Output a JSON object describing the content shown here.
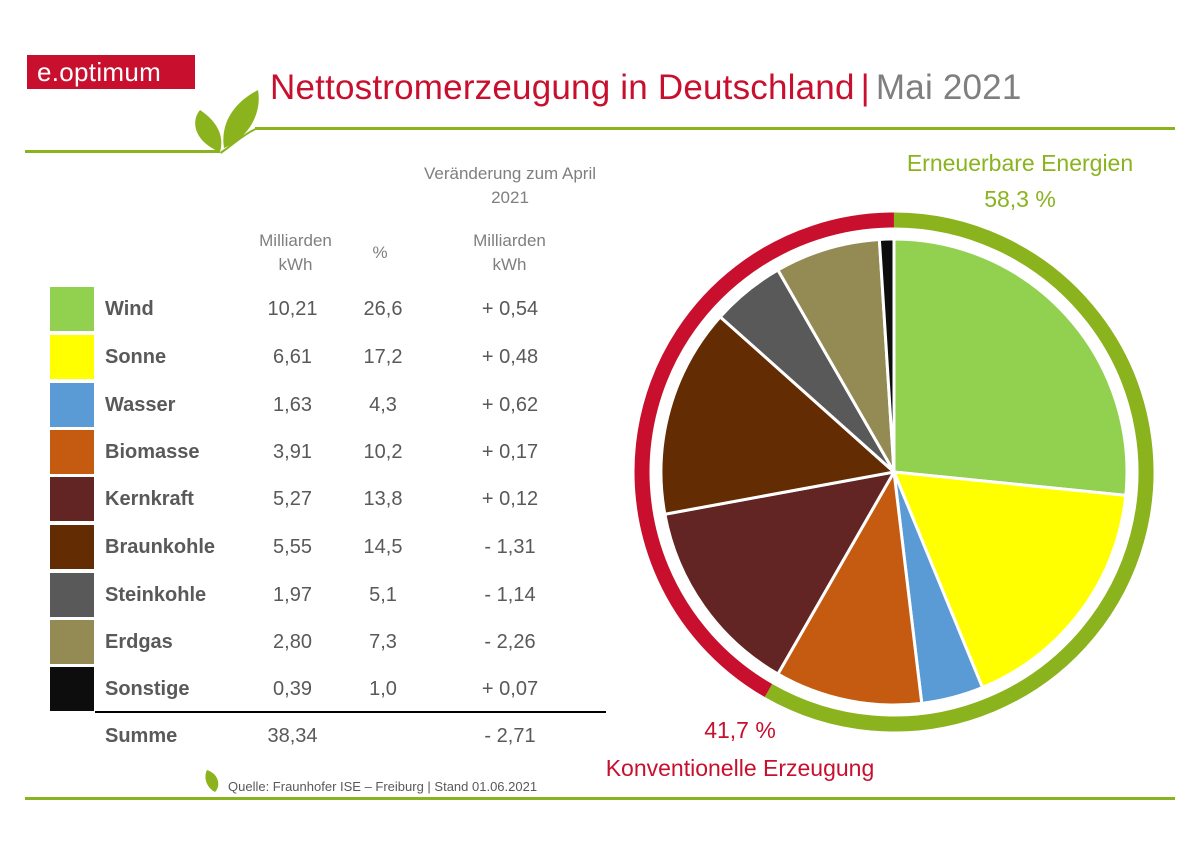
{
  "logo": {
    "text": "e.optimum"
  },
  "title": {
    "main": "Nettostromerzeugung in Deutschland",
    "separator": "|",
    "period": "Mai 2021"
  },
  "table": {
    "change_header": "Veränderung zum April 2021",
    "col_value_header": "Milliarden kWh",
    "col_pct_header": "%",
    "col_change_header": "Milliarden kWh",
    "rows": [
      {
        "name": "Wind",
        "value": "10,21",
        "pct": "26,6",
        "change": "+ 0,54",
        "color": "#92d050"
      },
      {
        "name": "Sonne",
        "value": "6,61",
        "pct": "17,2",
        "change": "+ 0,48",
        "color": "#ffff00"
      },
      {
        "name": "Wasser",
        "value": "1,63",
        "pct": "4,3",
        "change": "+ 0,62",
        "color": "#5b9bd5"
      },
      {
        "name": "Biomasse",
        "value": "3,91",
        "pct": "10,2",
        "change": "+ 0,17",
        "color": "#c55a11"
      },
      {
        "name": "Kernkraft",
        "value": "5,27",
        "pct": "13,8",
        "change": "+ 0,12",
        "color": "#632523"
      },
      {
        "name": "Braunkohle",
        "value": "5,55",
        "pct": "14,5",
        "change": "- 1,31",
        "color": "#632c03"
      },
      {
        "name": "Steinkohle",
        "value": "1,97",
        "pct": "5,1",
        "change": "- 1,14",
        "color": "#595959"
      },
      {
        "name": "Erdgas",
        "value": "2,80",
        "pct": "7,3",
        "change": "- 2,26",
        "color": "#948a54"
      },
      {
        "name": "Sonstige",
        "value": "0,39",
        "pct": "1,0",
        "change": "+ 0,07",
        "color": "#0d0d0d"
      }
    ],
    "sum": {
      "name": "Summe",
      "value": "38,34",
      "change": "- 2,71"
    }
  },
  "renewable": {
    "label": "Erneuerbare Energien",
    "pct_label": "58,3 %",
    "share": 58.3,
    "color": "#8ab31e"
  },
  "conventional": {
    "label": "Konventionelle Erzeugung",
    "pct_label": "41,7 %",
    "share": 41.7,
    "color": "#c8102e"
  },
  "source": "Quelle: Fraunhofer ISE – Freiburg | Stand 01.06.2021",
  "chart_data": {
    "type": "pie",
    "title": "Nettostromerzeugung in Deutschland | Mai 2021",
    "categories": [
      "Wind",
      "Sonne",
      "Wasser",
      "Biomasse",
      "Kernkraft",
      "Braunkohle",
      "Steinkohle",
      "Erdgas",
      "Sonstige"
    ],
    "values": [
      26.6,
      17.2,
      4.3,
      10.2,
      13.8,
      14.5,
      5.1,
      7.3,
      1.0
    ],
    "units": "%",
    "groups": [
      {
        "name": "Erneuerbare Energien",
        "value": 58.3
      },
      {
        "name": "Konventionelle Erzeugung",
        "value": 41.7
      }
    ]
  }
}
